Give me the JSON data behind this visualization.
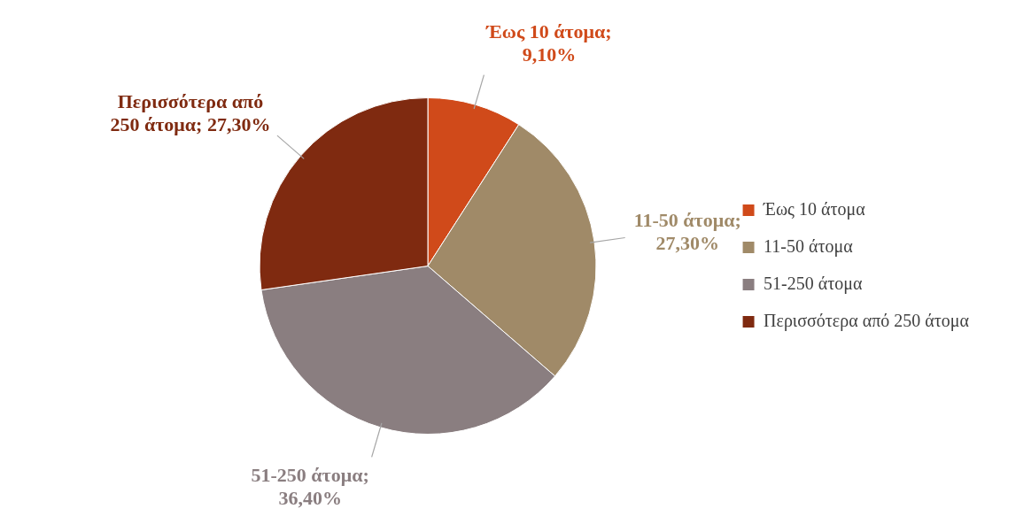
{
  "chart_data": {
    "type": "pie",
    "categories": [
      "Έως 10 άτομα",
      "11-50 άτομα",
      "51-250 άτομα",
      "Περισσότερα από 250 άτομα"
    ],
    "values": [
      9.1,
      27.3,
      36.4,
      27.3
    ],
    "colors": [
      "#d04a1a",
      "#a08a68",
      "#8a7e80",
      "#7f2a10"
    ],
    "value_labels": [
      "Έως 10 άτομα; 9,10%",
      "11-50 άτομα; 27,30%",
      "51-250 άτομα; 36,40%",
      "Περισσότερα από 250 άτομα; 27,30%"
    ],
    "legend": "right"
  }
}
